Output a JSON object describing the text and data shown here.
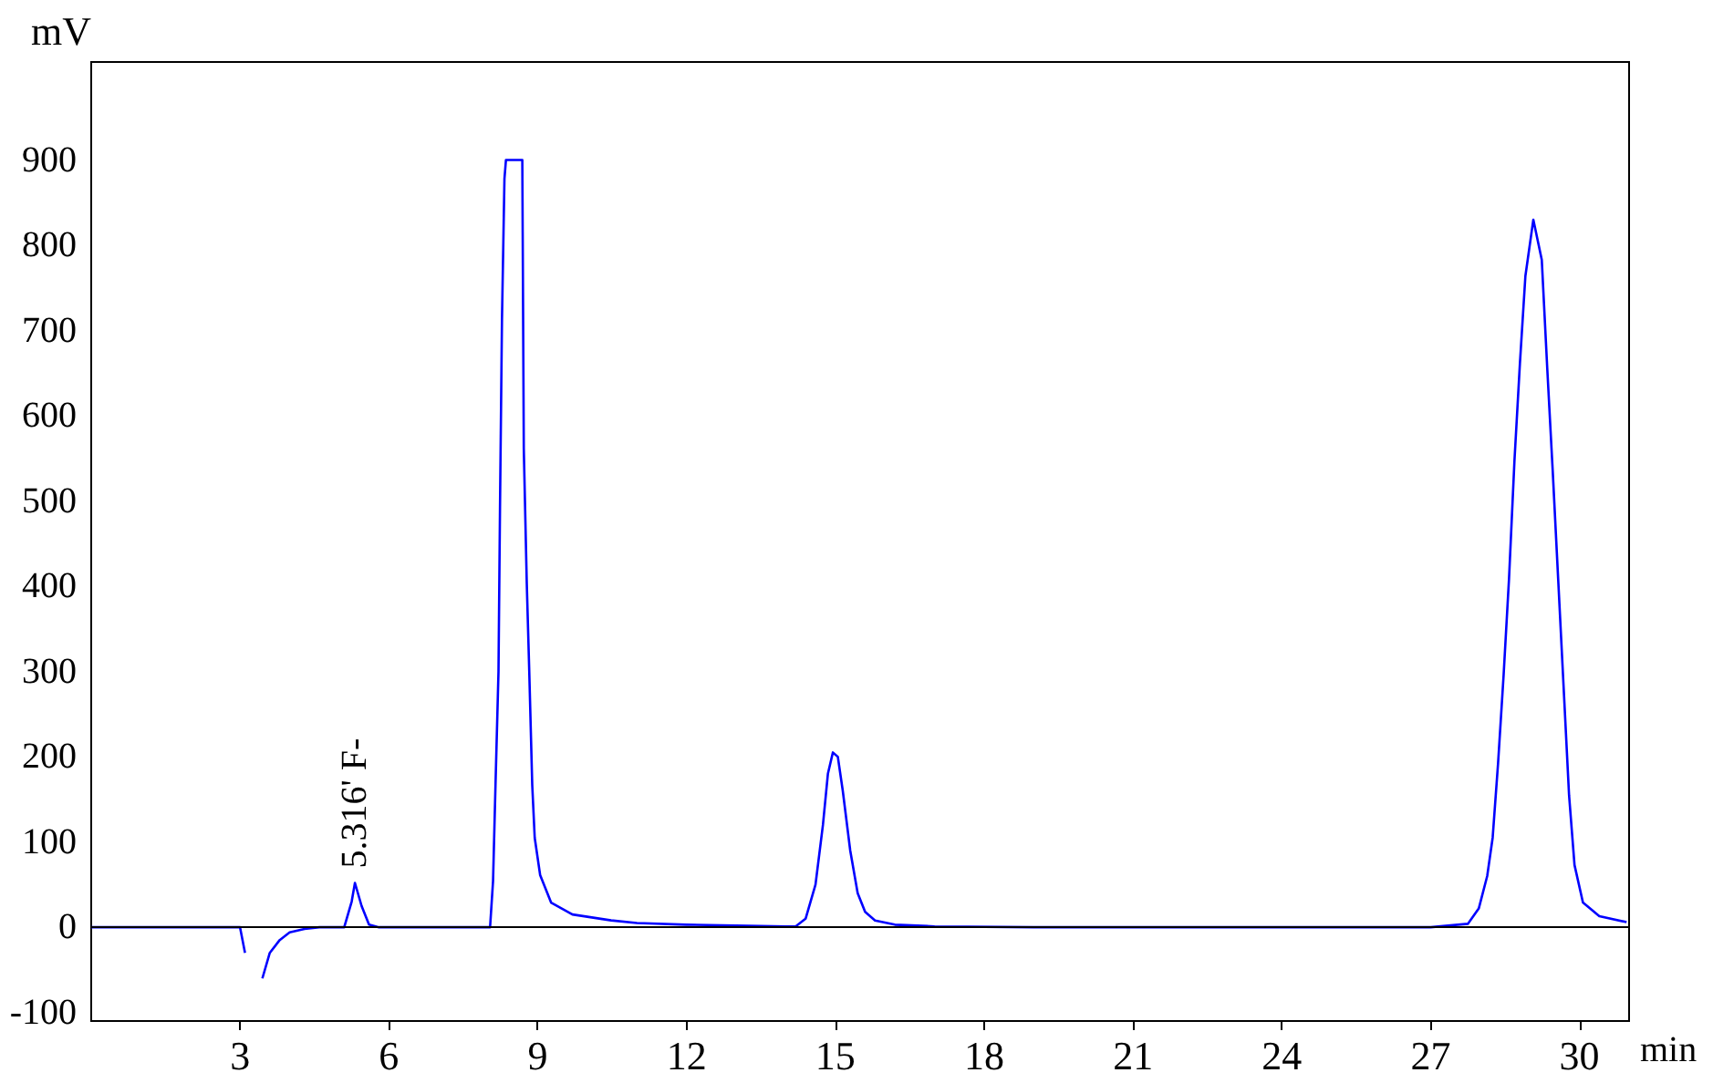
{
  "chart_data": {
    "type": "line",
    "xlabel": "min",
    "ylabel": "mV",
    "xlim": [
      0,
      31
    ],
    "ylim": [
      -110,
      1015
    ],
    "xticks": [
      3,
      6,
      9,
      12,
      15,
      18,
      21,
      24,
      27,
      30
    ],
    "yticks": [
      -100,
      0,
      100,
      200,
      300,
      400,
      500,
      600,
      700,
      800,
      900
    ],
    "grid": false,
    "ref_lines": [
      {
        "axis": "y",
        "value": 0,
        "color": "#000000",
        "line_style": "solid"
      }
    ],
    "marker": "none",
    "line_style": "solid",
    "annotations": [
      {
        "text": "5.316' F-",
        "x": 5.316,
        "y": 52
      }
    ],
    "series": [
      {
        "color": "#0000ff",
        "x": [
          0,
          3.0,
          3.1,
          3.2,
          3.35,
          3.45,
          3.6,
          3.8,
          4.0,
          4.3,
          4.6,
          5.1,
          5.25,
          5.316,
          5.45,
          5.6,
          5.8,
          8.04,
          8.1,
          8.15,
          8.21,
          8.24,
          8.28,
          8.33,
          8.36,
          8.69,
          8.72,
          8.78,
          8.83,
          8.89,
          8.94,
          9.05,
          9.27,
          9.7,
          10.48,
          11,
          12,
          13,
          14,
          14.2,
          14.4,
          14.6,
          14.75,
          14.85,
          14.95,
          15.05,
          15.15,
          15.3,
          15.45,
          15.6,
          15.8,
          16.2,
          17,
          19,
          27,
          27.75,
          27.97,
          28.14,
          28.25,
          28.36,
          28.47,
          28.58,
          28.69,
          28.8,
          28.91,
          29.07,
          29.24,
          29.35,
          29.46,
          29.57,
          29.68,
          29.79,
          29.9,
          30.07,
          30.4,
          30.95
        ],
        "values": [
          0,
          0,
          -30,
          null,
          null,
          -60,
          -30,
          -15,
          -6,
          -2,
          0,
          0,
          30,
          52,
          25,
          3,
          0,
          0,
          54,
          168,
          300,
          491,
          713,
          878,
          900,
          900,
          561,
          403,
          300,
          167,
          105,
          61,
          29,
          15,
          8,
          5,
          3,
          2,
          1,
          1,
          10,
          50,
          120,
          180,
          205,
          200,
          160,
          90,
          40,
          18,
          8,
          3,
          1,
          0,
          0,
          4,
          22,
          60,
          105,
          193,
          295,
          409,
          548,
          662,
          764,
          830,
          783,
          656,
          536,
          409,
          282,
          155,
          73,
          29,
          13,
          6
        ]
      }
    ]
  }
}
